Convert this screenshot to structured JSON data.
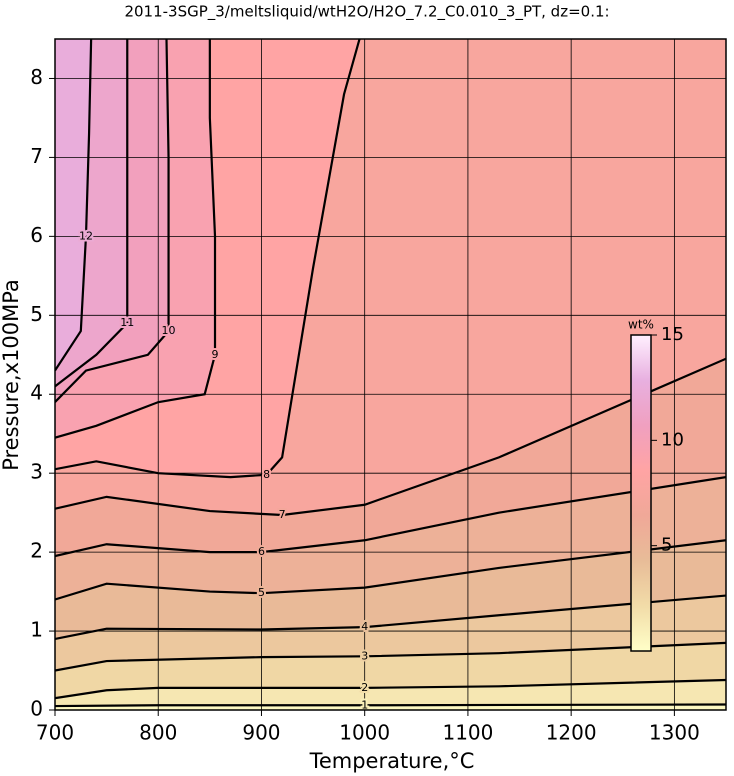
{
  "chart_data": {
    "type": "contour",
    "title": "2011-3SGP_3/meltsliquid/wtH2O/H2O_7.2_C0.010_3_PT, dz=0.1:",
    "x_label": "Temperature,°C",
    "y_label": "Pressure,x100MPa",
    "xlim": [
      700,
      1350
    ],
    "xticks": [
      700,
      800,
      900,
      1000,
      1100,
      1200,
      1300
    ],
    "ylim": [
      0,
      8.5
    ],
    "yticks": [
      0,
      1,
      2,
      3,
      4,
      5,
      6,
      7,
      8
    ],
    "grid": true,
    "contours": [
      {
        "level": 1,
        "x": [
          700,
          800,
          1000,
          1350
        ],
        "y": [
          0.05,
          0.06,
          0.06,
          0.07
        ]
      },
      {
        "level": 2,
        "x": [
          700,
          750,
          800,
          1000,
          1130,
          1350
        ],
        "y": [
          0.15,
          0.25,
          0.28,
          0.28,
          0.3,
          0.38
        ]
      },
      {
        "level": 3,
        "x": [
          700,
          750,
          900,
          1000,
          1130,
          1350
        ],
        "y": [
          0.5,
          0.62,
          0.67,
          0.68,
          0.72,
          0.85
        ]
      },
      {
        "level": 4,
        "x": [
          700,
          750,
          900,
          1000,
          1130,
          1350
        ],
        "y": [
          0.9,
          1.03,
          1.02,
          1.05,
          1.2,
          1.45
        ]
      },
      {
        "level": 5,
        "x": [
          700,
          750,
          850,
          900,
          1000,
          1130,
          1350
        ],
        "y": [
          1.4,
          1.6,
          1.5,
          1.48,
          1.55,
          1.8,
          2.15
        ]
      },
      {
        "level": 6,
        "x": [
          700,
          750,
          850,
          900,
          1000,
          1130,
          1350
        ],
        "y": [
          1.95,
          2.1,
          2.0,
          2.0,
          2.15,
          2.5,
          2.95
        ]
      },
      {
        "level": 7,
        "x": [
          700,
          750,
          850,
          920,
          1000,
          1130,
          1350
        ],
        "y": [
          2.55,
          2.7,
          2.52,
          2.47,
          2.6,
          3.2,
          4.45
        ]
      },
      {
        "level": 8,
        "x": [
          700,
          740,
          800,
          870,
          905,
          920,
          950,
          980,
          995
        ],
        "y": [
          3.05,
          3.15,
          3.0,
          2.95,
          2.98,
          3.2,
          5.6,
          7.8,
          8.5
        ]
      },
      {
        "level": 9,
        "x": [
          700,
          740,
          800,
          845,
          855,
          855,
          850,
          850
        ],
        "y": [
          3.45,
          3.6,
          3.9,
          4.0,
          4.5,
          6.0,
          7.5,
          8.5
        ]
      },
      {
        "level": 10,
        "x": [
          700,
          730,
          790,
          810,
          810,
          808
        ],
        "y": [
          3.9,
          4.3,
          4.5,
          4.8,
          7.0,
          8.5
        ]
      },
      {
        "level": 11,
        "x": [
          700,
          740,
          770,
          770,
          770
        ],
        "y": [
          4.1,
          4.5,
          4.9,
          7.0,
          8.5
        ]
      },
      {
        "level": 12,
        "x": [
          700,
          725,
          730,
          733,
          735
        ],
        "y": [
          4.3,
          4.8,
          6.0,
          7.3,
          8.5
        ]
      }
    ],
    "colorbar": {
      "label": "wt%",
      "lim": [
        0,
        15
      ],
      "ticks": [
        5,
        10,
        15
      ],
      "colors": [
        "#ffffc8",
        "#f2dca8",
        "#e8bc98",
        "#f0a898",
        "#ffa4a4",
        "#f0a0c0",
        "#e8b0e0",
        "#fff0ff"
      ]
    }
  }
}
